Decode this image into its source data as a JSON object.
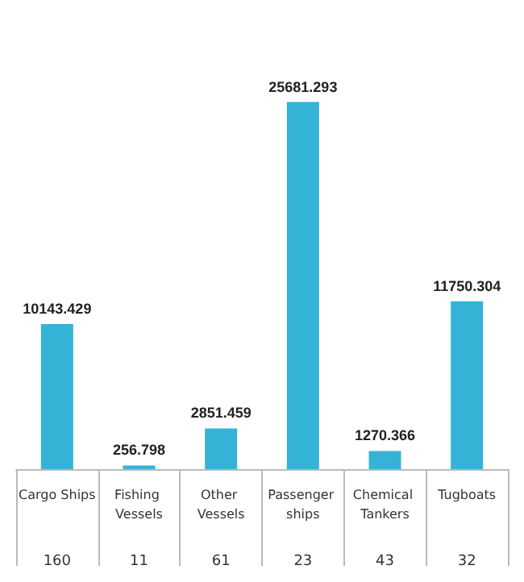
{
  "chart_data": {
    "type": "bar",
    "categories": [
      "Cargo Ships",
      "Fishing Vessels",
      "Other Vessels",
      "Passenger ships",
      "Chemical Tankers",
      "Tugboats"
    ],
    "values": [
      10143.429,
      256.798,
      2851.459,
      25681.293,
      1270.366,
      11750.304
    ],
    "color": "#35b3d6",
    "data_labels": true,
    "annotations": [
      "160",
      "11",
      "61",
      "23",
      "43",
      "32"
    ]
  }
}
